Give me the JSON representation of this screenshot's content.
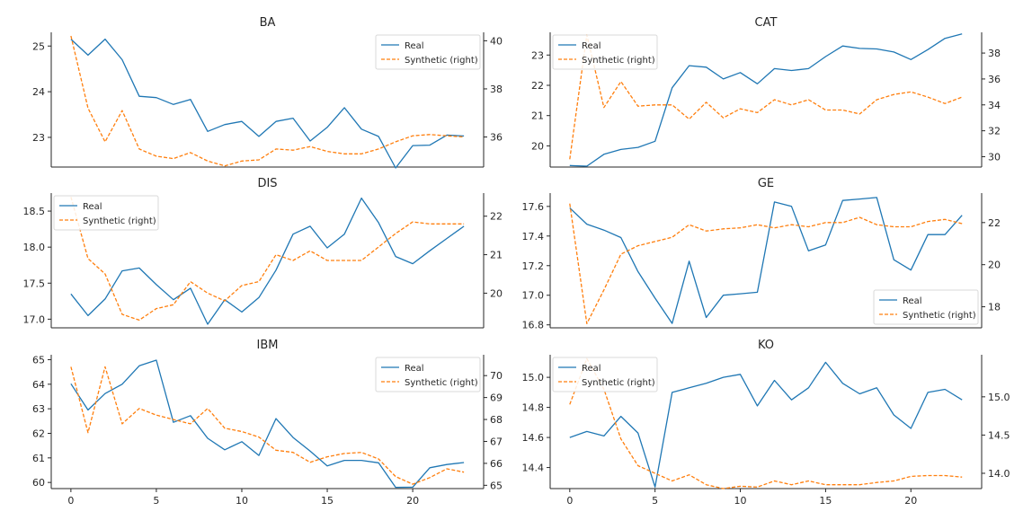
{
  "colors": {
    "real": "#1f77b4",
    "synthetic": "#ff7f0e",
    "axis": "#262626",
    "legend_border": "#d9d9d9"
  },
  "chart_data": [
    {
      "type": "line",
      "title": "BA",
      "legend_position": "top-right",
      "x": [
        0,
        1,
        2,
        3,
        4,
        5,
        6,
        7,
        8,
        9,
        10,
        11,
        12,
        13,
        14,
        15,
        16,
        17,
        18,
        19,
        20,
        21,
        22,
        23
      ],
      "ylim_left": [
        22.35,
        25.3
      ],
      "yticks_left": [
        23,
        24,
        25
      ],
      "ylim_right": [
        34.75,
        40.35
      ],
      "yticks_right": [
        36,
        38,
        40
      ],
      "xticks": [],
      "series": [
        {
          "name": "Real",
          "axis": "left",
          "style": "solid",
          "values": [
            25.15,
            24.8,
            25.15,
            24.7,
            23.9,
            23.87,
            23.72,
            23.83,
            23.13,
            23.28,
            23.35,
            23.02,
            23.35,
            23.42,
            22.92,
            23.22,
            23.65,
            23.18,
            23.02,
            22.33,
            22.82,
            22.83,
            23.05,
            23.03
          ]
        },
        {
          "name": "Synthetic (right)",
          "axis": "right",
          "style": "dashed",
          "values": [
            40.2,
            37.2,
            35.8,
            37.1,
            35.5,
            35.2,
            35.1,
            35.35,
            35.0,
            34.8,
            35.0,
            35.05,
            35.5,
            35.45,
            35.6,
            35.4,
            35.3,
            35.3,
            35.5,
            35.8,
            36.05,
            36.1,
            36.05,
            36.0
          ]
        }
      ]
    },
    {
      "type": "line",
      "title": "CAT",
      "legend_position": "top-left",
      "x": [
        0,
        1,
        2,
        3,
        4,
        5,
        6,
        7,
        8,
        9,
        10,
        11,
        12,
        13,
        14,
        15,
        16,
        17,
        18,
        19,
        20,
        21,
        22,
        23
      ],
      "ylim_left": [
        19.3,
        23.75
      ],
      "yticks_left": [
        20,
        21,
        22,
        23
      ],
      "ylim_right": [
        29.2,
        39.6
      ],
      "yticks_right": [
        30,
        32,
        34,
        36,
        38
      ],
      "xticks": [],
      "series": [
        {
          "name": "Real",
          "axis": "left",
          "style": "solid",
          "values": [
            19.35,
            19.33,
            19.72,
            19.88,
            19.95,
            20.15,
            21.92,
            22.65,
            22.6,
            22.21,
            22.42,
            22.05,
            22.55,
            22.49,
            22.55,
            22.95,
            23.3,
            23.22,
            23.2,
            23.1,
            22.85,
            23.18,
            23.55,
            23.7
          ]
        },
        {
          "name": "Synthetic (right)",
          "axis": "right",
          "style": "dashed",
          "values": [
            29.8,
            39.4,
            33.8,
            35.8,
            33.9,
            34.0,
            34.0,
            32.9,
            34.2,
            33.0,
            33.7,
            33.4,
            34.4,
            34.0,
            34.4,
            33.6,
            33.6,
            33.3,
            34.4,
            34.8,
            35.0,
            34.6,
            34.1,
            34.6
          ]
        }
      ]
    },
    {
      "type": "line",
      "title": "DIS",
      "legend_position": "top-left",
      "x": [
        0,
        1,
        2,
        3,
        4,
        5,
        6,
        7,
        8,
        9,
        10,
        11,
        12,
        13,
        14,
        15,
        16,
        17,
        18,
        19,
        20,
        21,
        22,
        23
      ],
      "ylim_left": [
        16.88,
        18.75
      ],
      "yticks_left": [
        17.0,
        17.5,
        18.0,
        18.5
      ],
      "ylim_right": [
        19.1,
        22.6
      ],
      "yticks_right": [
        20,
        21,
        22
      ],
      "xticks": [],
      "series": [
        {
          "name": "Real",
          "axis": "left",
          "style": "solid",
          "values": [
            17.35,
            17.05,
            17.28,
            17.67,
            17.71,
            17.48,
            17.27,
            17.43,
            16.93,
            17.27,
            17.1,
            17.3,
            17.68,
            18.18,
            18.29,
            17.99,
            18.18,
            18.68,
            18.34,
            17.87,
            17.77,
            17.95,
            18.12,
            18.29
          ]
        },
        {
          "name": "Synthetic (right)",
          "axis": "right",
          "style": "dashed",
          "values": [
            22.5,
            20.9,
            20.5,
            19.45,
            19.3,
            19.6,
            19.7,
            20.3,
            20.0,
            19.8,
            20.2,
            20.3,
            21.0,
            20.85,
            21.1,
            20.85,
            20.85,
            20.85,
            21.2,
            21.55,
            21.85,
            21.8,
            21.8,
            21.8
          ]
        }
      ]
    },
    {
      "type": "line",
      "title": "GE",
      "legend_position": "bottom-right",
      "x": [
        0,
        1,
        2,
        3,
        4,
        5,
        6,
        7,
        8,
        9,
        10,
        11,
        12,
        13,
        14,
        15,
        16,
        17,
        18,
        19,
        20,
        21,
        22,
        23
      ],
      "ylim_left": [
        16.78,
        17.69
      ],
      "yticks_left": [
        16.8,
        17.0,
        17.2,
        17.4,
        17.6
      ],
      "ylim_right": [
        17.0,
        23.4
      ],
      "yticks_right": [
        18,
        20,
        22
      ],
      "xticks": [],
      "series": [
        {
          "name": "Real",
          "axis": "left",
          "style": "solid",
          "values": [
            17.59,
            17.48,
            17.44,
            17.39,
            17.16,
            16.98,
            16.81,
            17.23,
            16.85,
            17.0,
            17.01,
            17.02,
            17.63,
            17.6,
            17.3,
            17.34,
            17.64,
            17.65,
            17.66,
            17.24,
            17.17,
            17.41,
            17.41,
            17.54
          ]
        },
        {
          "name": "Synthetic (right)",
          "axis": "right",
          "style": "dashed",
          "values": [
            22.9,
            17.2,
            18.8,
            20.5,
            20.9,
            21.1,
            21.3,
            21.9,
            21.6,
            21.7,
            21.75,
            21.9,
            21.75,
            21.9,
            21.8,
            22.0,
            22.0,
            22.25,
            21.9,
            21.8,
            21.8,
            22.05,
            22.15,
            21.95
          ]
        }
      ]
    },
    {
      "type": "line",
      "title": "IBM",
      "legend_position": "top-right",
      "x": [
        0,
        1,
        2,
        3,
        4,
        5,
        6,
        7,
        8,
        9,
        10,
        11,
        12,
        13,
        14,
        15,
        16,
        17,
        18,
        19,
        20,
        21,
        22,
        23
      ],
      "ylim_left": [
        59.75,
        65.2
      ],
      "yticks_left": [
        60,
        61,
        62,
        63,
        64,
        65
      ],
      "ylim_right": [
        64.85,
        70.95
      ],
      "yticks_right": [
        65,
        66,
        67,
        68,
        69,
        70
      ],
      "xticks": [
        0,
        5,
        10,
        15,
        20
      ],
      "series": [
        {
          "name": "Real",
          "axis": "left",
          "style": "solid",
          "values": [
            64.02,
            62.95,
            63.62,
            64.0,
            64.75,
            64.98,
            62.45,
            62.72,
            61.8,
            61.33,
            61.66,
            61.1,
            62.6,
            61.83,
            61.28,
            60.67,
            60.9,
            60.9,
            60.8,
            59.8,
            59.81,
            60.6,
            60.73,
            60.81
          ]
        },
        {
          "name": "Synthetic (right)",
          "axis": "right",
          "style": "dashed",
          "values": [
            70.4,
            67.4,
            70.4,
            67.8,
            68.5,
            68.2,
            68.0,
            67.8,
            68.5,
            67.6,
            67.45,
            67.2,
            66.6,
            66.5,
            66.05,
            66.3,
            66.45,
            66.5,
            66.2,
            65.4,
            65.05,
            65.35,
            65.75,
            65.6
          ]
        }
      ]
    },
    {
      "type": "line",
      "title": "KO",
      "legend_position": "top-left",
      "x": [
        0,
        1,
        2,
        3,
        4,
        5,
        6,
        7,
        8,
        9,
        10,
        11,
        12,
        13,
        14,
        15,
        16,
        17,
        18,
        19,
        20,
        21,
        22,
        23
      ],
      "ylim_left": [
        14.26,
        15.15
      ],
      "yticks_left": [
        14.4,
        14.6,
        14.8,
        15.0
      ],
      "ylim_right": [
        13.8,
        15.55
      ],
      "yticks_right": [
        14.0,
        14.5,
        15.0
      ],
      "xticks": [
        0,
        5,
        10,
        15,
        20
      ],
      "series": [
        {
          "name": "Real",
          "axis": "left",
          "style": "solid",
          "values": [
            14.6,
            14.64,
            14.61,
            14.74,
            14.63,
            14.27,
            14.9,
            14.93,
            14.96,
            15.0,
            15.02,
            14.81,
            14.98,
            14.85,
            14.93,
            15.1,
            14.96,
            14.89,
            14.93,
            14.75,
            14.66,
            14.9,
            14.92,
            14.85
          ]
        },
        {
          "name": "Synthetic (right)",
          "axis": "right",
          "style": "dashed",
          "values": [
            14.9,
            15.5,
            15.1,
            14.45,
            14.1,
            14.0,
            13.9,
            13.98,
            13.85,
            13.8,
            13.83,
            13.82,
            13.9,
            13.85,
            13.9,
            13.85,
            13.85,
            13.85,
            13.88,
            13.9,
            13.96,
            13.97,
            13.97,
            13.95
          ]
        }
      ]
    }
  ]
}
